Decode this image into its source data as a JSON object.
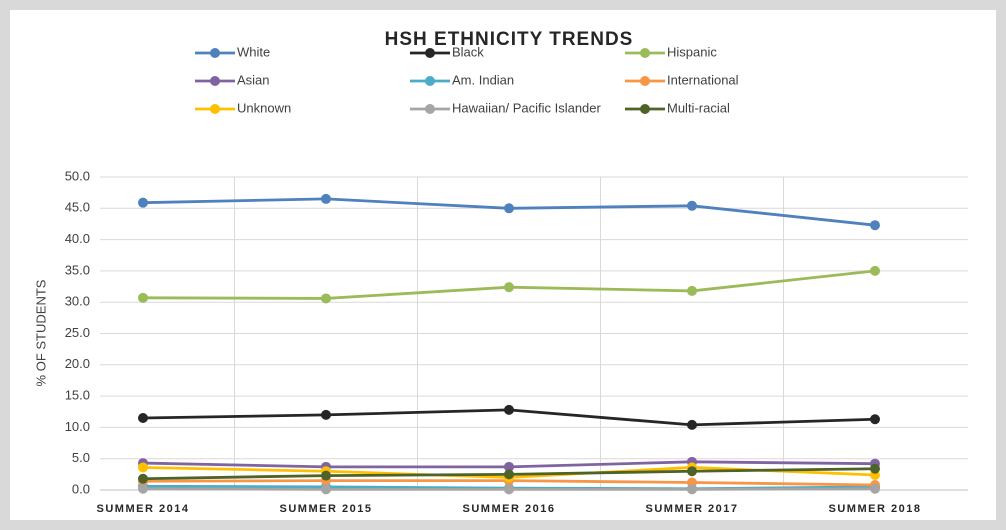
{
  "chart_data": {
    "type": "line",
    "title": "HSH ETHNICITY TRENDS",
    "y_label": "% OF STUDENTS",
    "categories": [
      "SUMMER 2014",
      "SUMMER 2015",
      "SUMMER 2016",
      "SUMMER 2017",
      "SUMMER 2018"
    ],
    "series": [
      {
        "name": "White",
        "color": "#4f81bd",
        "values": [
          45.9,
          46.5,
          45.0,
          45.4,
          42.3
        ]
      },
      {
        "name": "Black",
        "color": "#262626",
        "values": [
          11.5,
          12.0,
          12.8,
          10.4,
          11.3
        ]
      },
      {
        "name": "Hispanic",
        "color": "#9bbb59",
        "values": [
          30.7,
          30.6,
          32.4,
          31.8,
          35.0
        ]
      },
      {
        "name": "Asian",
        "color": "#8064a2",
        "values": [
          4.3,
          3.7,
          3.7,
          4.5,
          4.2
        ]
      },
      {
        "name": "Am. Indian",
        "color": "#4bacc6",
        "values": [
          0.6,
          0.5,
          0.3,
          0.2,
          0.5
        ]
      },
      {
        "name": "International",
        "color": "#f79646",
        "values": [
          1.4,
          1.5,
          1.5,
          1.2,
          0.8
        ]
      },
      {
        "name": "Unknown",
        "color": "#ffc000",
        "values": [
          3.6,
          3.0,
          2.0,
          3.6,
          2.4
        ]
      },
      {
        "name": "Hawaiian/ Pacific Islander",
        "color": "#a5a5a5",
        "values": [
          0.2,
          0.1,
          0.1,
          0.1,
          0.2
        ]
      },
      {
        "name": "Multi-racial",
        "color": "#4f6228",
        "values": [
          1.8,
          2.3,
          2.5,
          3.0,
          3.4
        ]
      }
    ],
    "ylim": [
      0,
      50
    ],
    "yticks": [
      {
        "value": 0,
        "label": "0.0"
      },
      {
        "value": 5,
        "label": "5.0"
      },
      {
        "value": 10,
        "label": "10.0"
      },
      {
        "value": 15,
        "label": "15.0"
      },
      {
        "value": 20,
        "label": "20.0"
      },
      {
        "value": 25,
        "label": "25.0"
      },
      {
        "value": 30,
        "label": "30.0"
      },
      {
        "value": 35,
        "label": "35.0"
      },
      {
        "value": 40,
        "label": "40.0"
      },
      {
        "value": 45,
        "label": "45.0"
      },
      {
        "value": 50,
        "label": "50.0"
      }
    ],
    "grid": true,
    "legend": "top"
  }
}
